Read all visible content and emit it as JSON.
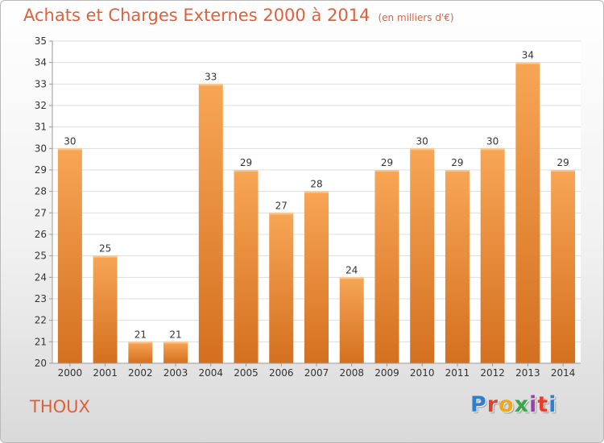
{
  "header": {
    "title": "Achats et Charges Externes 2000 à 2014",
    "unit": "(en milliers d'€)"
  },
  "commune": "THOUX",
  "logo": {
    "text": "Proxiti",
    "colors": [
      "#2e7fd0",
      "#e53e2c",
      "#f0a51e",
      "#3aa64a",
      "#9b3fb4",
      "#e53e2c",
      "#2e7fd0"
    ]
  },
  "chart_data": {
    "type": "bar",
    "title": "Achats et Charges Externes 2000 à 2014",
    "subtitle": "(en milliers d'€)",
    "xlabel": "",
    "ylabel": "",
    "categories": [
      "2000",
      "2001",
      "2002",
      "2003",
      "2004",
      "2005",
      "2006",
      "2007",
      "2008",
      "2009",
      "2010",
      "2011",
      "2012",
      "2013",
      "2014"
    ],
    "values": [
      30,
      25,
      21,
      21,
      33,
      29,
      27,
      28,
      24,
      29,
      30,
      29,
      30,
      34,
      29
    ],
    "ylim": [
      20,
      35
    ],
    "yticks": [
      20,
      21,
      22,
      23,
      24,
      25,
      26,
      27,
      28,
      29,
      30,
      31,
      32,
      33,
      34,
      35
    ],
    "grid": true,
    "legend": "none",
    "bar_color_top": "#f7a656",
    "bar_color_bottom": "#d4701f",
    "text_color": "#333333",
    "title_color": "#e0603a"
  }
}
